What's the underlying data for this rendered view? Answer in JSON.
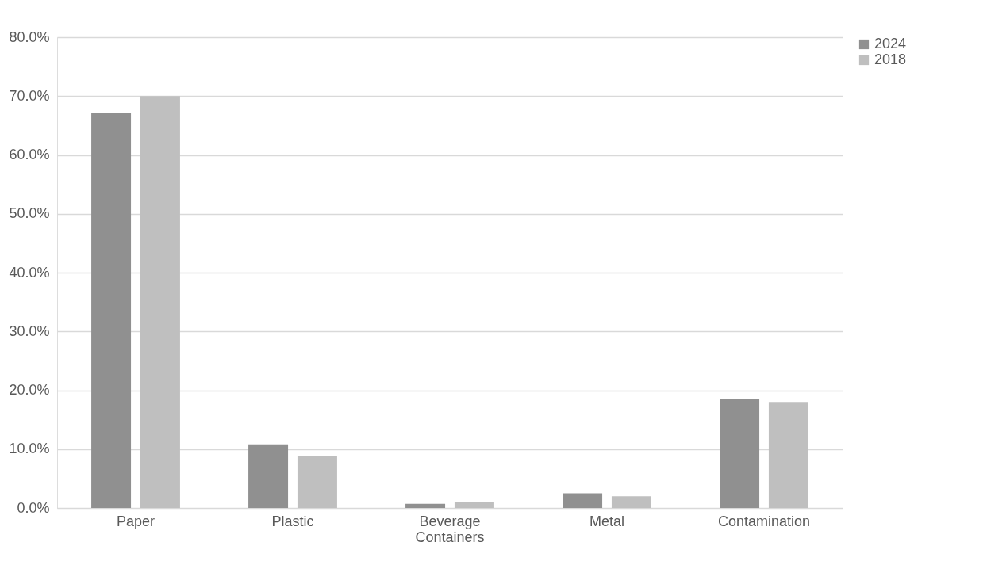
{
  "chart_data": {
    "type": "bar",
    "categories": [
      "Paper",
      "Plastic",
      "Beverage Containers",
      "Metal",
      "Contamination"
    ],
    "series": [
      {
        "name": "2024",
        "color": "#909090",
        "values": [
          67.2,
          10.8,
          0.7,
          2.5,
          18.5
        ]
      },
      {
        "name": "2018",
        "color": "#bfbfbf",
        "values": [
          70.0,
          8.9,
          1.0,
          2.0,
          18.0
        ]
      }
    ],
    "ylim": [
      0,
      80
    ],
    "yticks": [
      {
        "value": 0,
        "label": "0.0%"
      },
      {
        "value": 10,
        "label": "10.0%"
      },
      {
        "value": 20,
        "label": "20.0%"
      },
      {
        "value": 30,
        "label": "30.0%"
      },
      {
        "value": 40,
        "label": "40.0%"
      },
      {
        "value": 50,
        "label": "50.0%"
      },
      {
        "value": 60,
        "label": "60.0%"
      },
      {
        "value": 70,
        "label": "70.0%"
      },
      {
        "value": 80,
        "label": "80.0%"
      }
    ],
    "grid": "y",
    "legend": "right"
  }
}
